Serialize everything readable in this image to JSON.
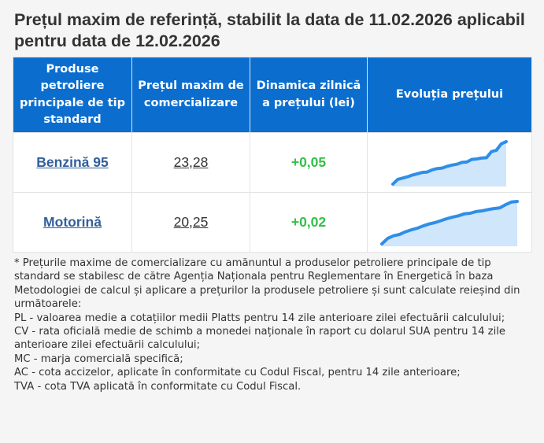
{
  "title": "Prețul maxim de referință, stabilit la data de 11.02.2026 aplicabil pentru data de 12.02.2026",
  "table": {
    "headers": [
      "Produse petroliere principale de tip standard",
      "Prețul maxim de comercializare",
      "Dinamica zilnică a prețului (lei)",
      "Evoluția prețului"
    ],
    "rows": [
      {
        "product": "Benzină 95",
        "price": "23,28",
        "delta": "+0,05",
        "trend": [
          22.3,
          22.41,
          22.44,
          22.47,
          22.51,
          22.54,
          22.57,
          22.58,
          22.63,
          22.66,
          22.67,
          22.71,
          22.74,
          22.76,
          22.8,
          22.81,
          22.87,
          22.88,
          22.9,
          22.91,
          23.05,
          23.08,
          23.23,
          23.28
        ]
      },
      {
        "product": "Motorină",
        "price": "20,25",
        "delta": "+0,02",
        "trend": [
          18.95,
          19.12,
          19.2,
          19.24,
          19.32,
          19.38,
          19.43,
          19.5,
          19.56,
          19.6,
          19.66,
          19.72,
          19.77,
          19.81,
          19.87,
          19.89,
          19.94,
          19.96,
          20.0,
          20.03,
          20.05,
          20.15,
          20.23,
          20.25
        ]
      }
    ]
  },
  "colors": {
    "header_bg": "#0b6ecf",
    "product_link": "#335f9a",
    "delta_positive": "#35c04a",
    "sparkline_line": "#2f8ee8",
    "sparkline_fill": "#cfe6fb"
  },
  "notes": [
    "* Prețurile maxime de comercializare cu amănuntul a produselor petroliere principale de tip standard se stabilesc de către Agenția Naționala pentru Reglementare în Energetică în baza Metodologiei de calcul și aplicare a prețurilor la produsele petroliere și sunt calculate reieșind din următoarele:",
    "PL - valoarea medie a cotațiilor medii Platts pentru 14 zile anterioare zilei efectuării calculului;",
    "CV - rata oficială medie de schimb a monedei naționale în raport cu dolarul SUA pentru 14 zile anterioare zilei efectuării calculului;",
    "MC - marja comercială specifică;",
    "AC - cota accizelor, aplicate în conformitate cu Codul Fiscal, pentru 14 zile anterioare;",
    "TVA - cota TVA aplicată în conformitate cu Codul Fiscal."
  ]
}
